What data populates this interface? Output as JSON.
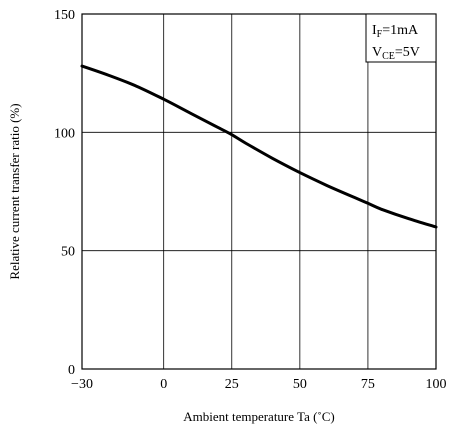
{
  "chart_data": {
    "type": "line",
    "title": "",
    "xlabel": "Ambient temperature Ta (˚C)",
    "ylabel": "Relative current transfer ratio (%)",
    "xlim": [
      -30,
      100
    ],
    "ylim": [
      0,
      150
    ],
    "xticks": [
      -30,
      0,
      25,
      50,
      75,
      100
    ],
    "yticks": [
      0,
      50,
      100,
      150
    ],
    "xtick_labels": [
      "−30",
      "0",
      "25",
      "50",
      "75",
      "100"
    ],
    "ytick_labels": [
      "0",
      "50",
      "100",
      "150"
    ],
    "grid": true,
    "series": [
      {
        "x": [
          -30,
          -20,
          -10,
          0,
          10,
          20,
          25,
          30,
          40,
          50,
          60,
          70,
          75,
          80,
          90,
          100
        ],
        "values": [
          128,
          124,
          119.5,
          114,
          108,
          102,
          99,
          95.5,
          89,
          83,
          77.5,
          72.5,
          70,
          67.5,
          63.5,
          60
        ],
        "color": "#000000"
      }
    ],
    "annotation": {
      "if": {
        "main": "I",
        "sub": "F",
        "rest": "=1mA"
      },
      "vce": {
        "main": "V",
        "sub": "CE",
        "rest": "=5V"
      }
    }
  }
}
